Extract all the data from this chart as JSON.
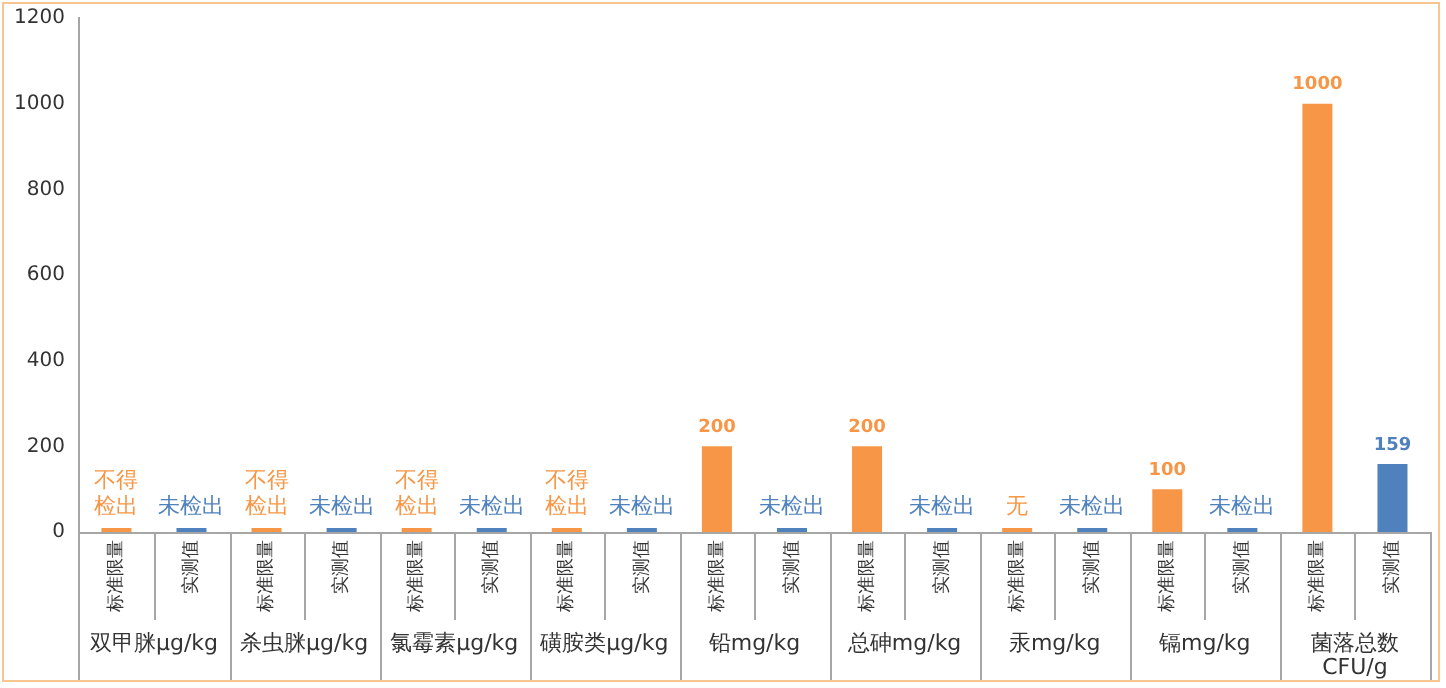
{
  "chart_data": {
    "type": "bar",
    "categories": [
      "双甲脒μg/kg",
      "杀虫脒μg/kg",
      "氯霉素μg/kg",
      "磺胺类μg/kg",
      "铅mg/kg",
      "总砷mg/kg",
      "汞mg/kg",
      "镉mg/kg",
      "菌落总数 CFU/g"
    ],
    "series": [
      {
        "name": "标准限量",
        "color": "#f79646",
        "values": [
          0,
          0,
          0,
          0,
          200,
          200,
          0,
          100,
          1000
        ],
        "value_labels": [
          "不得检出",
          "不得检出",
          "不得检出",
          "不得检出",
          "200",
          "200",
          "无",
          "100",
          "1000"
        ]
      },
      {
        "name": "实测值",
        "color": "#4f81bd",
        "values": [
          0,
          0,
          0,
          0,
          0,
          0,
          0,
          0,
          159
        ],
        "value_labels": [
          "未检出",
          "未检出",
          "未检出",
          "未检出",
          "未检出",
          "未检出",
          "未检出",
          "未检出",
          "159"
        ]
      }
    ],
    "ylim": [
      0,
      1200
    ],
    "yticks": [
      0,
      200,
      400,
      600,
      800,
      1000,
      1200
    ],
    "grid": false,
    "legend": false
  }
}
